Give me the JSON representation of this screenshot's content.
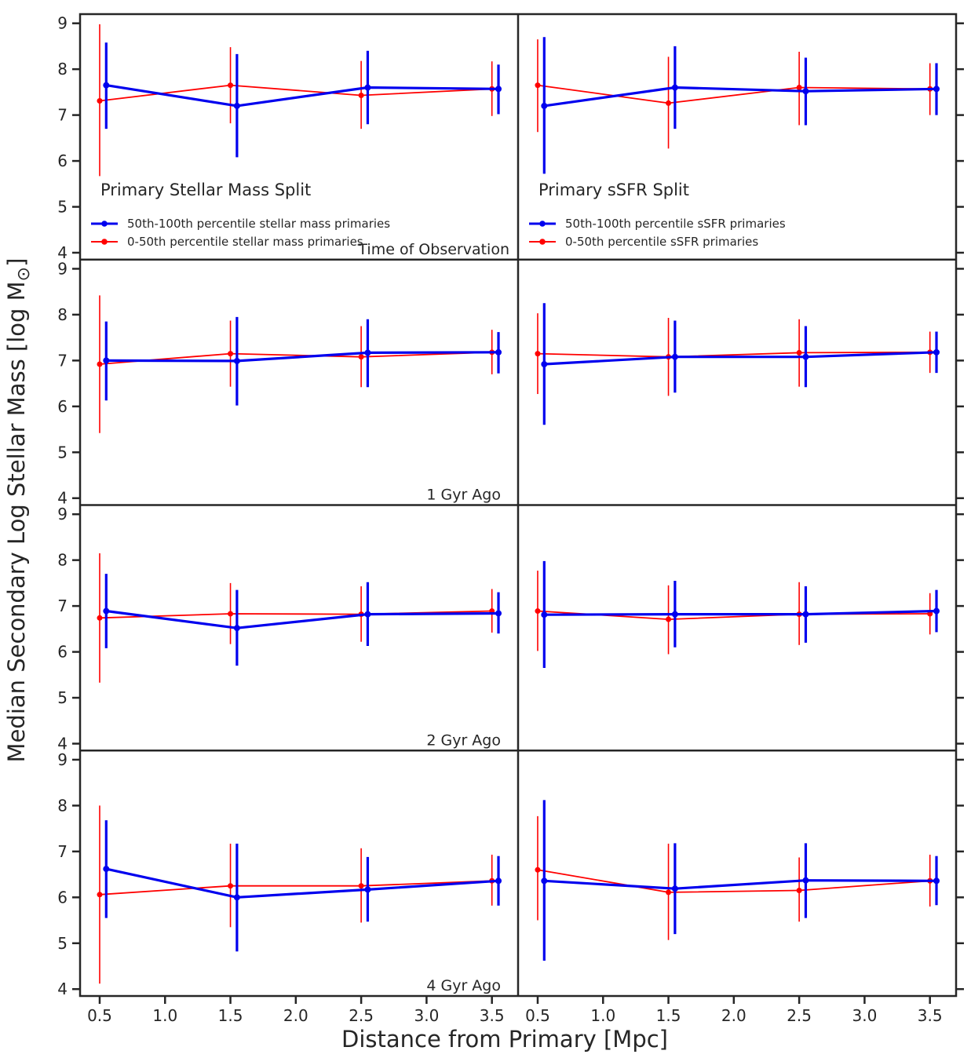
{
  "chart_data": {
    "type": "line",
    "subtype": "errorbar-grid",
    "xlabel": "Distance from Primary [Mpc]",
    "ylabel": "Median Secondary Log Stellar Mass [log M",
    "ylabel_symbol": "⊙",
    "ylabel_close": "]",
    "xlim": [
      0.35,
      3.7
    ],
    "ylim": [
      3.85,
      9.2
    ],
    "xticks": [
      "0.5",
      "1.0",
      "1.5",
      "2.0",
      "2.5",
      "3.0",
      "3.5"
    ],
    "yticks": [
      "4",
      "5",
      "6",
      "7",
      "8",
      "9"
    ],
    "colors": {
      "high": "#0000ee",
      "low": "#ff0000",
      "axes": "#262626"
    },
    "columns": [
      {
        "title": "Primary Stellar Mass Split",
        "legend": [
          "50th-100th percentile stellar mass primaries",
          "0-50th percentile stellar mass primaries"
        ]
      },
      {
        "title": "Primary sSFR Split",
        "legend": [
          "50th-100th percentile sSFR primaries",
          "0-50th percentile sSFR primaries"
        ]
      }
    ],
    "rows": [
      "Time of Observation",
      "1 Gyr Ago",
      "2 Gyr Ago",
      "4 Gyr Ago"
    ],
    "panels": [
      {
        "row": 0,
        "col": 0,
        "series": [
          {
            "name": "50th-100th percentile stellar mass primaries",
            "color": "#0000ee",
            "x": [
              0.55,
              1.55,
              2.55,
              3.55
            ],
            "y": [
              7.65,
              7.2,
              7.6,
              7.57
            ],
            "lo": [
              6.7,
              6.08,
              6.8,
              7.02
            ],
            "hi": [
              8.58,
              8.33,
              8.4,
              8.1
            ]
          },
          {
            "name": "0-50th percentile stellar mass primaries",
            "color": "#ff0000",
            "x": [
              0.5,
              1.5,
              2.5,
              3.5
            ],
            "y": [
              7.31,
              7.65,
              7.43,
              7.57
            ],
            "lo": [
              5.67,
              6.82,
              6.7,
              6.98
            ],
            "hi": [
              8.98,
              8.48,
              8.18,
              8.17
            ]
          }
        ]
      },
      {
        "row": 0,
        "col": 1,
        "series": [
          {
            "name": "50th-100th percentile sSFR primaries",
            "color": "#0000ee",
            "x": [
              0.55,
              1.55,
              2.55,
              3.55
            ],
            "y": [
              7.2,
              7.6,
              7.52,
              7.57
            ],
            "lo": [
              5.72,
              6.7,
              6.78,
              7.0
            ],
            "hi": [
              8.7,
              8.5,
              8.25,
              8.13
            ]
          },
          {
            "name": "0-50th percentile sSFR primaries",
            "color": "#ff0000",
            "x": [
              0.5,
              1.5,
              2.5,
              3.5
            ],
            "y": [
              7.65,
              7.26,
              7.6,
              7.57
            ],
            "lo": [
              6.63,
              6.27,
              6.78,
              7.0
            ],
            "hi": [
              8.65,
              8.27,
              8.38,
              8.13
            ]
          }
        ]
      },
      {
        "row": 1,
        "col": 0,
        "series": [
          {
            "name": "50th-100th percentile stellar mass primaries",
            "color": "#0000ee",
            "x": [
              0.55,
              1.55,
              2.55,
              3.55
            ],
            "y": [
              7.0,
              6.99,
              7.17,
              7.18
            ],
            "lo": [
              6.13,
              6.02,
              6.42,
              6.72
            ],
            "hi": [
              7.85,
              7.95,
              7.9,
              7.62
            ]
          },
          {
            "name": "0-50th percentile stellar mass primaries",
            "color": "#ff0000",
            "x": [
              0.5,
              1.5,
              2.5,
              3.5
            ],
            "y": [
              6.92,
              7.15,
              7.08,
              7.18
            ],
            "lo": [
              5.42,
              6.43,
              6.42,
              6.7
            ],
            "hi": [
              8.42,
              7.87,
              7.75,
              7.67
            ]
          }
        ]
      },
      {
        "row": 1,
        "col": 1,
        "series": [
          {
            "name": "50th-100th percentile sSFR primaries",
            "color": "#0000ee",
            "x": [
              0.55,
              1.55,
              2.55,
              3.55
            ],
            "y": [
              6.92,
              7.08,
              7.08,
              7.18
            ],
            "lo": [
              5.6,
              6.3,
              6.42,
              6.73
            ],
            "hi": [
              8.25,
              7.87,
              7.75,
              7.63
            ]
          },
          {
            "name": "0-50th percentile sSFR primaries",
            "color": "#ff0000",
            "x": [
              0.5,
              1.5,
              2.5,
              3.5
            ],
            "y": [
              7.15,
              7.08,
              7.17,
              7.18
            ],
            "lo": [
              6.27,
              6.23,
              6.43,
              6.73
            ],
            "hi": [
              8.03,
              7.93,
              7.9,
              7.63
            ]
          }
        ]
      },
      {
        "row": 2,
        "col": 0,
        "series": [
          {
            "name": "50th-100th percentile stellar mass primaries",
            "color": "#0000ee",
            "x": [
              0.55,
              1.55,
              2.55,
              3.55
            ],
            "y": [
              6.89,
              6.52,
              6.82,
              6.84
            ],
            "lo": [
              6.08,
              5.7,
              6.13,
              6.4
            ],
            "hi": [
              7.7,
              7.35,
              7.52,
              7.3
            ]
          },
          {
            "name": "0-50th percentile stellar mass primaries",
            "color": "#ff0000",
            "x": [
              0.5,
              1.5,
              2.5,
              3.5
            ],
            "y": [
              6.74,
              6.83,
              6.82,
              6.89
            ],
            "lo": [
              5.33,
              6.17,
              6.22,
              6.42
            ],
            "hi": [
              8.15,
              7.5,
              7.43,
              7.37
            ]
          }
        ]
      },
      {
        "row": 2,
        "col": 1,
        "series": [
          {
            "name": "50th-100th percentile sSFR primaries",
            "color": "#0000ee",
            "x": [
              0.55,
              1.55,
              2.55,
              3.55
            ],
            "y": [
              6.81,
              6.82,
              6.82,
              6.89
            ],
            "lo": [
              5.65,
              6.1,
              6.2,
              6.43
            ],
            "hi": [
              7.98,
              7.55,
              7.43,
              7.35
            ]
          },
          {
            "name": "0-50th percentile sSFR primaries",
            "color": "#ff0000",
            "x": [
              0.5,
              1.5,
              2.5,
              3.5
            ],
            "y": [
              6.89,
              6.71,
              6.82,
              6.83
            ],
            "lo": [
              6.02,
              5.95,
              6.15,
              6.38
            ],
            "hi": [
              7.77,
              7.45,
              7.52,
              7.28
            ]
          }
        ]
      },
      {
        "row": 3,
        "col": 0,
        "series": [
          {
            "name": "50th-100th percentile stellar mass primaries",
            "color": "#0000ee",
            "x": [
              0.55,
              1.55,
              2.55,
              3.55
            ],
            "y": [
              6.62,
              6.0,
              6.17,
              6.36
            ],
            "lo": [
              5.55,
              4.82,
              5.47,
              5.82
            ],
            "hi": [
              7.68,
              7.17,
              6.88,
              6.9
            ]
          },
          {
            "name": "0-50th percentile stellar mass primaries",
            "color": "#ff0000",
            "x": [
              0.5,
              1.5,
              2.5,
              3.5
            ],
            "y": [
              6.06,
              6.25,
              6.25,
              6.36
            ],
            "lo": [
              4.12,
              5.35,
              5.45,
              5.82
            ],
            "hi": [
              8.0,
              7.17,
              7.07,
              6.93
            ]
          }
        ]
      },
      {
        "row": 3,
        "col": 1,
        "series": [
          {
            "name": "50th-100th percentile sSFR primaries",
            "color": "#0000ee",
            "x": [
              0.55,
              1.55,
              2.55,
              3.55
            ],
            "y": [
              6.36,
              6.19,
              6.37,
              6.36
            ],
            "lo": [
              4.62,
              5.2,
              5.55,
              5.83
            ],
            "hi": [
              8.12,
              7.18,
              7.18,
              6.9
            ]
          },
          {
            "name": "0-50th percentile sSFR primaries",
            "color": "#ff0000",
            "x": [
              0.5,
              1.5,
              2.5,
              3.5
            ],
            "y": [
              6.6,
              6.11,
              6.15,
              6.36
            ],
            "lo": [
              5.5,
              5.07,
              5.47,
              5.8
            ],
            "hi": [
              7.77,
              7.17,
              6.87,
              6.93
            ]
          }
        ]
      }
    ]
  }
}
